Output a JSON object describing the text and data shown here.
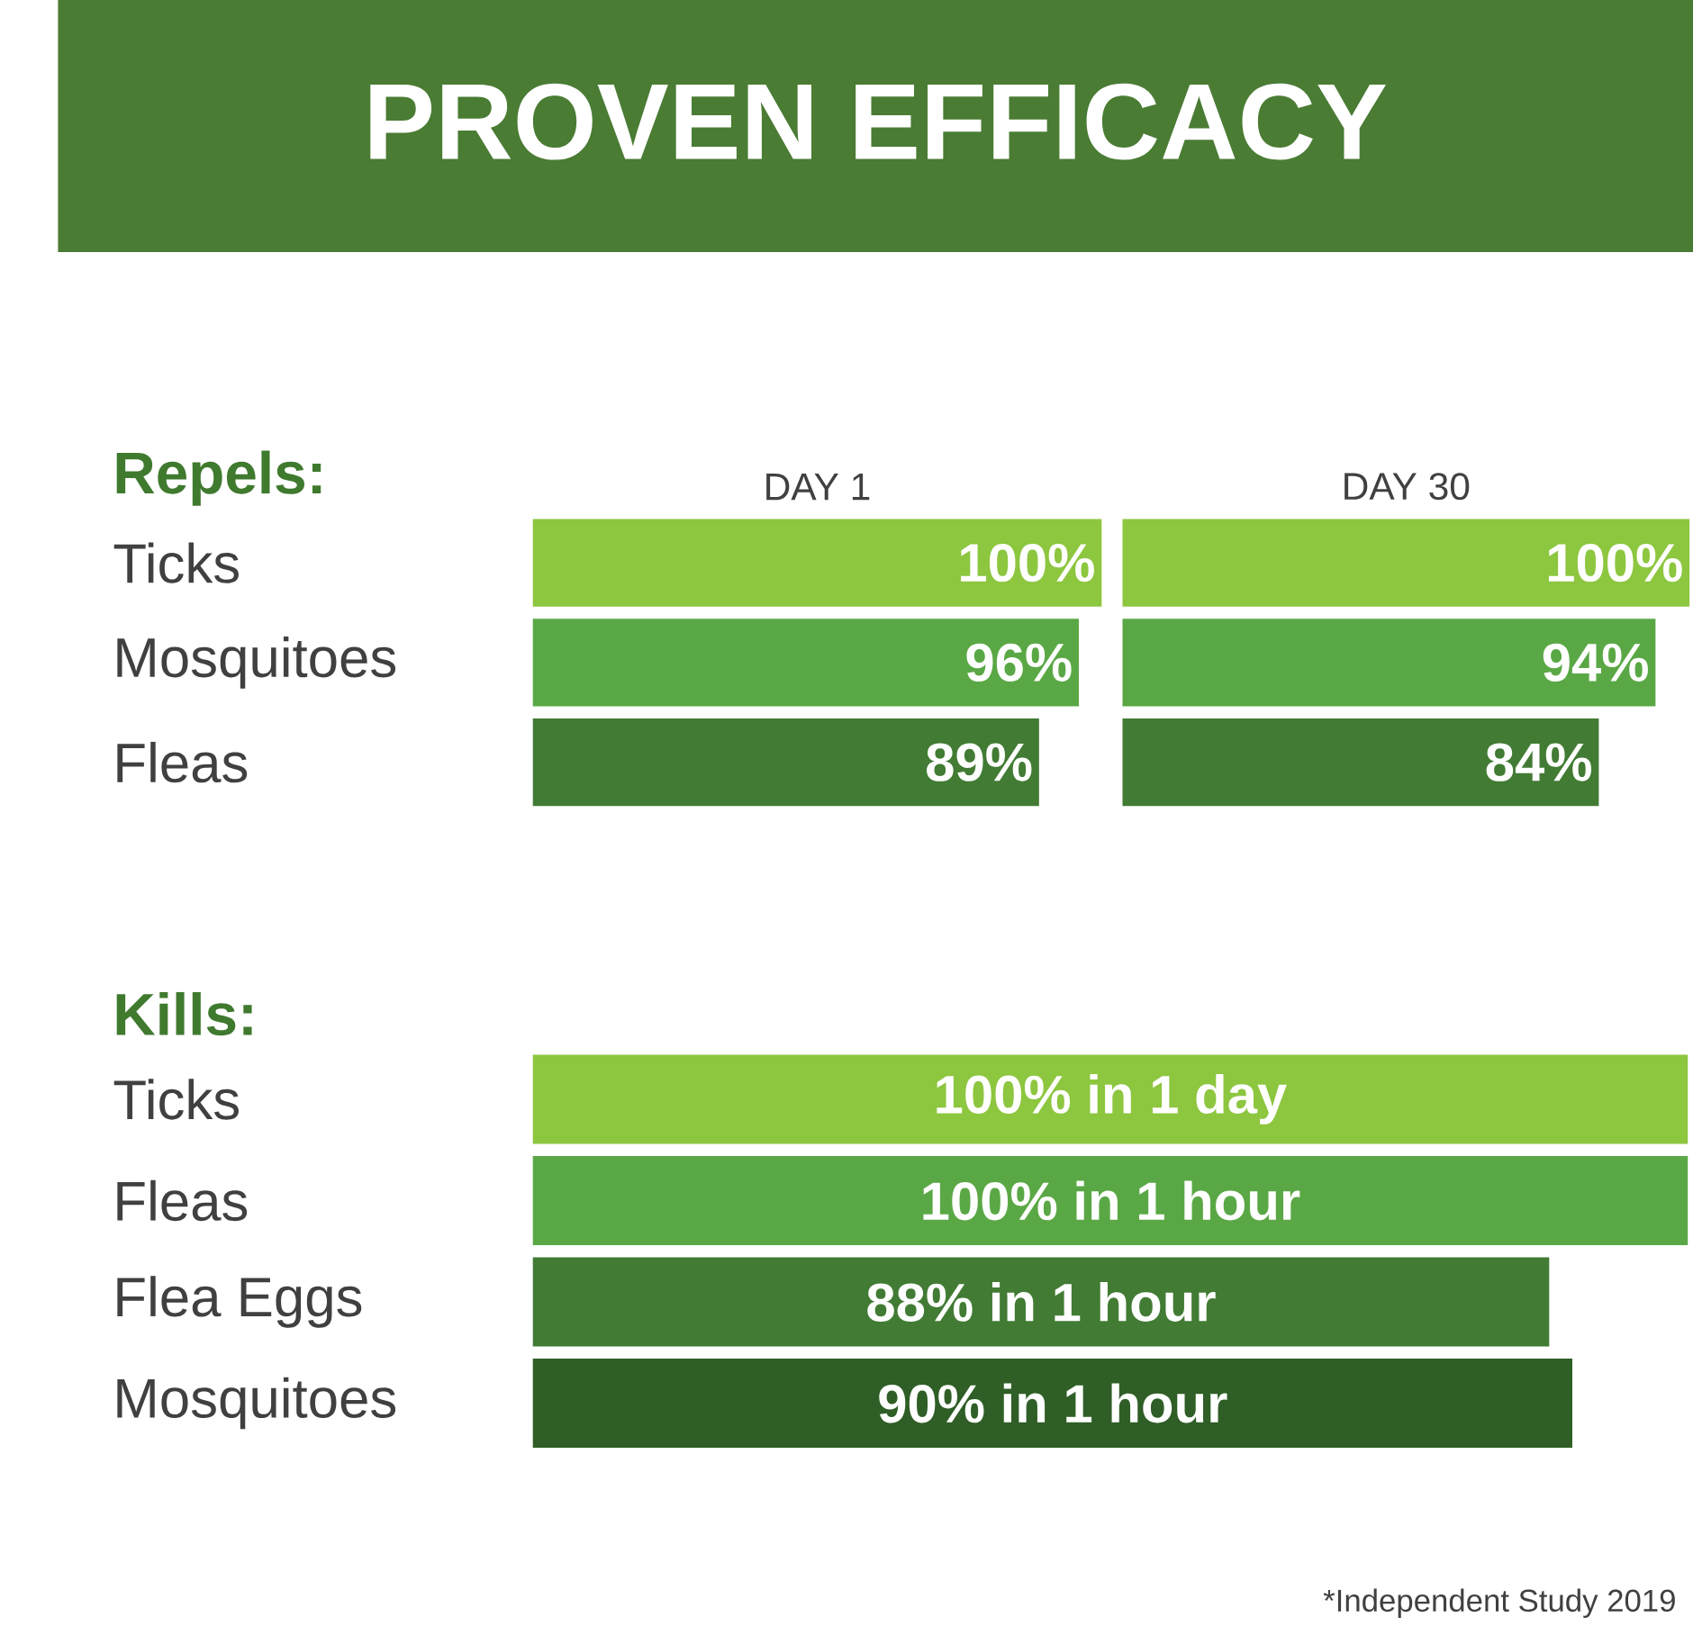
{
  "chart_data": [
    {
      "type": "bar",
      "orientation": "horizontal",
      "title": "DAY 1",
      "annotations": [
        "PROVEN EFFICACY",
        "Repels:"
      ],
      "categories": [
        "Ticks",
        "Mosquitoes",
        "Fleas"
      ],
      "values": [
        100,
        96,
        89
      ],
      "value_labels": [
        "100%",
        "96%",
        "89%"
      ],
      "colors": [
        "#8dc63f",
        "#5aa845",
        "#427b34"
      ],
      "xlim": [
        0,
        100
      ],
      "tick_labels": "y"
    },
    {
      "type": "bar",
      "orientation": "horizontal",
      "title": "DAY 30",
      "categories": [
        null,
        null,
        null
      ],
      "values": [
        100,
        94,
        84
      ],
      "value_labels": [
        "100%",
        "94%",
        "84%"
      ],
      "colors": [
        "#8dc63f",
        "#5aa845",
        "#427b34"
      ],
      "xlim": [
        0,
        100
      ],
      "tick_labels": false
    },
    {
      "type": "bar",
      "orientation": "horizontal",
      "annotations": [
        "Kills:",
        "*Independent Study 2019"
      ],
      "categories": [
        "Ticks",
        "Fleas",
        "Flea Eggs",
        "Mosquitoes"
      ],
      "values": [
        100,
        100,
        88,
        90
      ],
      "value_labels": [
        "100% in 1 day",
        "100% in 1 hour",
        "88% in 1 hour",
        "90% in 1 hour"
      ],
      "colors": [
        "#8dc63f",
        "#5aa845",
        "#427b34",
        "#2f5e26"
      ],
      "xlim": [
        0,
        100
      ],
      "tick_labels": "y"
    }
  ]
}
